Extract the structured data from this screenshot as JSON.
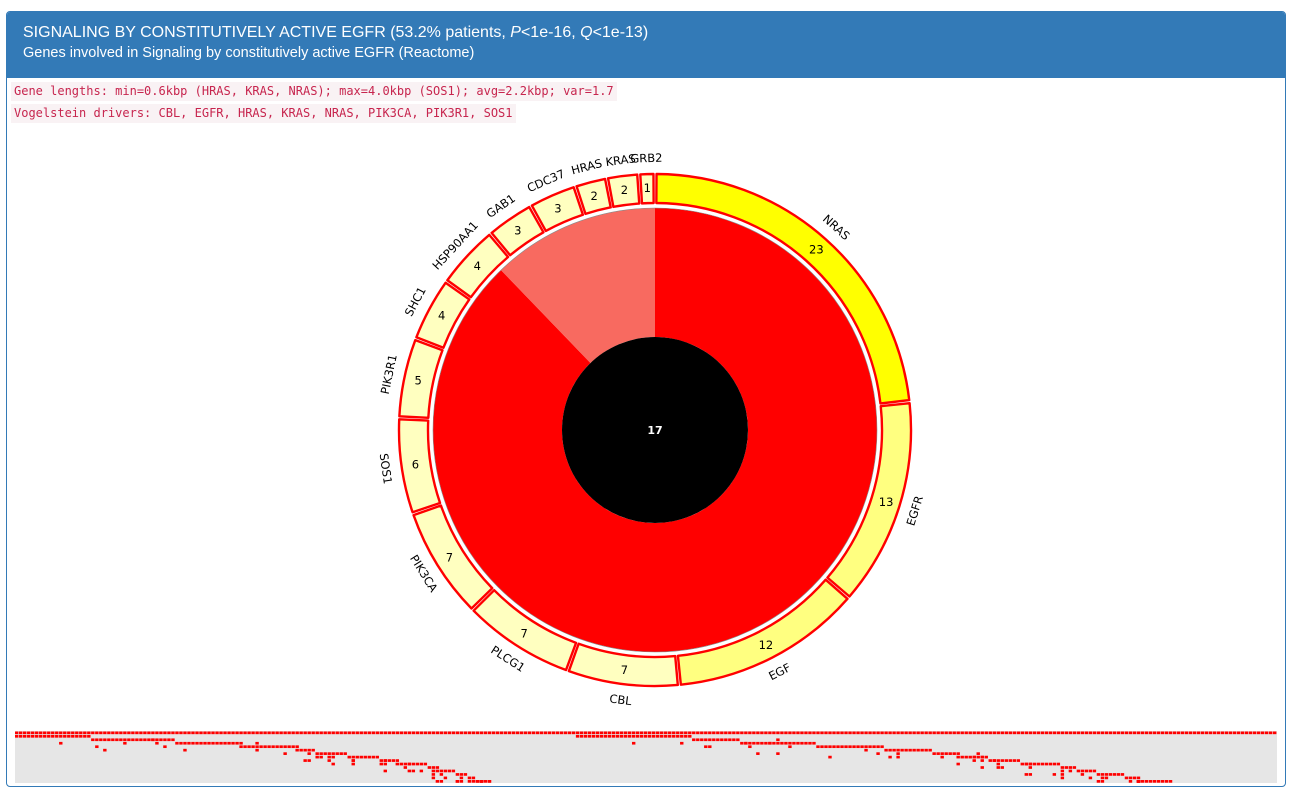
{
  "header": {
    "title_main": "SIGNALING BY CONSTITUTIVELY ACTIVE EGFR",
    "title_stats_prefix": "(53.2% patients, ",
    "p_symbol": "P",
    "p_value": "<1e-16, ",
    "q_symbol": "Q",
    "q_value": "<1e-13)",
    "subtitle": "Genes involved in Signaling by constitutively active EGFR (Reactome)"
  },
  "info": {
    "gene_lengths": "Gene lengths: min=0.6kbp (HRAS, KRAS, NRAS); max=4.0kbp (SOS1); avg=2.2kbp; var=1.7",
    "drivers": "Vogelstein drivers: CBL, EGFR, HRAS, KRAS, NRAS, PIK3CA, PIK3R1, SOS1"
  },
  "colors": {
    "header_bg": "#337ab7",
    "mutated": "#ff0000",
    "mutated_light": "#f86a60",
    "center": "#000000",
    "gene_high": "#ffff00",
    "gene_mid": "#ffff80",
    "gene_low": "#ffffc0",
    "outline": "#ff0000"
  },
  "chart_data": {
    "type": "sunburst",
    "center_label": "17",
    "inner_ring": [
      {
        "value": 87.8,
        "color": "mutated"
      },
      {
        "value": 12.2,
        "color": "mutated_light"
      }
    ],
    "genes": [
      {
        "name": "NRAS",
        "value": 23
      },
      {
        "name": "EGFR",
        "value": 13
      },
      {
        "name": "EGF",
        "value": 12
      },
      {
        "name": "CBL",
        "value": 7
      },
      {
        "name": "PLCG1",
        "value": 7
      },
      {
        "name": "PIK3CA",
        "value": 7
      },
      {
        "name": "SOS1",
        "value": 6
      },
      {
        "name": "PIK3R1",
        "value": 5
      },
      {
        "name": "SHC1",
        "value": 4
      },
      {
        "name": "HSP90AA1",
        "value": 4
      },
      {
        "name": "GAB1",
        "value": 3
      },
      {
        "name": "CDC37",
        "value": 3
      },
      {
        "name": "HRAS",
        "value": 2
      },
      {
        "name": "KRAS",
        "value": 2
      },
      {
        "name": "GRB2",
        "value": 1
      }
    ]
  }
}
